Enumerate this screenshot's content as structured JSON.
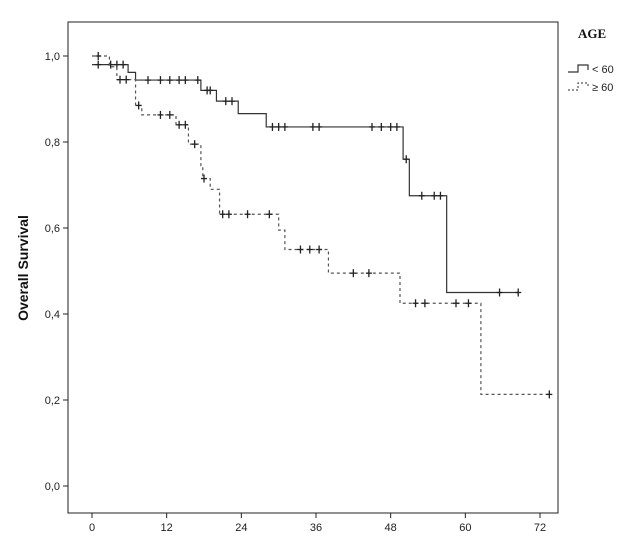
{
  "chart_data": {
    "type": "line",
    "subtype": "kaplan-meier step curve",
    "title": "",
    "xlabel": "",
    "ylabel": "Overall Survival",
    "xlim": [
      0,
      74
    ],
    "ylim": [
      0,
      1.0
    ],
    "x_ticks": [
      {
        "value": 0,
        "label": "0"
      },
      {
        "value": 12,
        "label": "12"
      },
      {
        "value": 24,
        "label": "24"
      },
      {
        "value": 36,
        "label": "36"
      },
      {
        "value": 48,
        "label": "48"
      },
      {
        "value": 60,
        "label": "60"
      },
      {
        "value": 72,
        "label": "72"
      }
    ],
    "y_ticks": [
      {
        "value": 0.0,
        "label": "0,0"
      },
      {
        "value": 0.2,
        "label": "0,2"
      },
      {
        "value": 0.4,
        "label": "0,4"
      },
      {
        "value": 0.6,
        "label": "0,6"
      },
      {
        "value": 0.8,
        "label": "0,8"
      },
      {
        "value": 1.0,
        "label": "1,0"
      }
    ],
    "grid": false,
    "legend": {
      "title": "AGE",
      "placement": "top-right, outside plot",
      "entries": [
        "< 60",
        "≥ 60"
      ]
    },
    "series": [
      {
        "name": "< 60",
        "line_style": "solid",
        "color": "#333333",
        "steps": [
          {
            "x": 0,
            "y": 0.98
          },
          {
            "x": 5.8,
            "y": 0.962
          },
          {
            "x": 7,
            "y": 0.944
          },
          {
            "x": 17.5,
            "y": 0.92
          },
          {
            "x": 20,
            "y": 0.895
          },
          {
            "x": 23.5,
            "y": 0.866
          },
          {
            "x": 28,
            "y": 0.835
          },
          {
            "x": 50,
            "y": 0.76
          },
          {
            "x": 51,
            "y": 0.675
          },
          {
            "x": 57,
            "y": 0.45
          },
          {
            "x": 68.5,
            "y": 0.45
          }
        ],
        "censored": [
          {
            "x": 1,
            "y": 0.98
          },
          {
            "x": 3,
            "y": 0.98
          },
          {
            "x": 4,
            "y": 0.98
          },
          {
            "x": 5,
            "y": 0.98
          },
          {
            "x": 9,
            "y": 0.944
          },
          {
            "x": 11,
            "y": 0.944
          },
          {
            "x": 12.5,
            "y": 0.944
          },
          {
            "x": 14,
            "y": 0.944
          },
          {
            "x": 15,
            "y": 0.944
          },
          {
            "x": 17,
            "y": 0.944
          },
          {
            "x": 18.5,
            "y": 0.92
          },
          {
            "x": 19,
            "y": 0.92
          },
          {
            "x": 21.5,
            "y": 0.895
          },
          {
            "x": 22.5,
            "y": 0.895
          },
          {
            "x": 29,
            "y": 0.835
          },
          {
            "x": 30,
            "y": 0.835
          },
          {
            "x": 31,
            "y": 0.835
          },
          {
            "x": 35.5,
            "y": 0.835
          },
          {
            "x": 36.5,
            "y": 0.835
          },
          {
            "x": 45,
            "y": 0.835
          },
          {
            "x": 46.5,
            "y": 0.835
          },
          {
            "x": 48,
            "y": 0.835
          },
          {
            "x": 49,
            "y": 0.835
          },
          {
            "x": 50.5,
            "y": 0.76
          },
          {
            "x": 53,
            "y": 0.675
          },
          {
            "x": 55,
            "y": 0.675
          },
          {
            "x": 56,
            "y": 0.675
          },
          {
            "x": 65.5,
            "y": 0.45
          },
          {
            "x": 68.5,
            "y": 0.45
          }
        ]
      },
      {
        "name": "≥ 60",
        "line_style": "dotted",
        "color": "#555555",
        "steps": [
          {
            "x": 0,
            "y": 1.0
          },
          {
            "x": 2.8,
            "y": 0.975
          },
          {
            "x": 4,
            "y": 0.945
          },
          {
            "x": 7,
            "y": 0.885
          },
          {
            "x": 8,
            "y": 0.863
          },
          {
            "x": 13.5,
            "y": 0.84
          },
          {
            "x": 15.5,
            "y": 0.795
          },
          {
            "x": 17.5,
            "y": 0.745
          },
          {
            "x": 17.8,
            "y": 0.715
          },
          {
            "x": 19,
            "y": 0.69
          },
          {
            "x": 20.5,
            "y": 0.632
          },
          {
            "x": 30,
            "y": 0.595
          },
          {
            "x": 31,
            "y": 0.55
          },
          {
            "x": 38,
            "y": 0.495
          },
          {
            "x": 49.5,
            "y": 0.425
          },
          {
            "x": 62.5,
            "y": 0.213
          },
          {
            "x": 73.5,
            "y": 0.213
          }
        ],
        "censored": [
          {
            "x": 1,
            "y": 1.0
          },
          {
            "x": 4.5,
            "y": 0.945
          },
          {
            "x": 5.5,
            "y": 0.945
          },
          {
            "x": 7.5,
            "y": 0.885
          },
          {
            "x": 11,
            "y": 0.863
          },
          {
            "x": 12.5,
            "y": 0.863
          },
          {
            "x": 14,
            "y": 0.84
          },
          {
            "x": 15,
            "y": 0.84
          },
          {
            "x": 16.5,
            "y": 0.795
          },
          {
            "x": 18,
            "y": 0.715
          },
          {
            "x": 21,
            "y": 0.632
          },
          {
            "x": 22,
            "y": 0.632
          },
          {
            "x": 25,
            "y": 0.632
          },
          {
            "x": 28.5,
            "y": 0.632
          },
          {
            "x": 33.5,
            "y": 0.55
          },
          {
            "x": 35,
            "y": 0.55
          },
          {
            "x": 36.5,
            "y": 0.55
          },
          {
            "x": 42,
            "y": 0.495
          },
          {
            "x": 44.5,
            "y": 0.495
          },
          {
            "x": 52,
            "y": 0.425
          },
          {
            "x": 53.5,
            "y": 0.425
          },
          {
            "x": 58.5,
            "y": 0.425
          },
          {
            "x": 60.5,
            "y": 0.425
          },
          {
            "x": 73.5,
            "y": 0.213
          }
        ]
      }
    ]
  }
}
